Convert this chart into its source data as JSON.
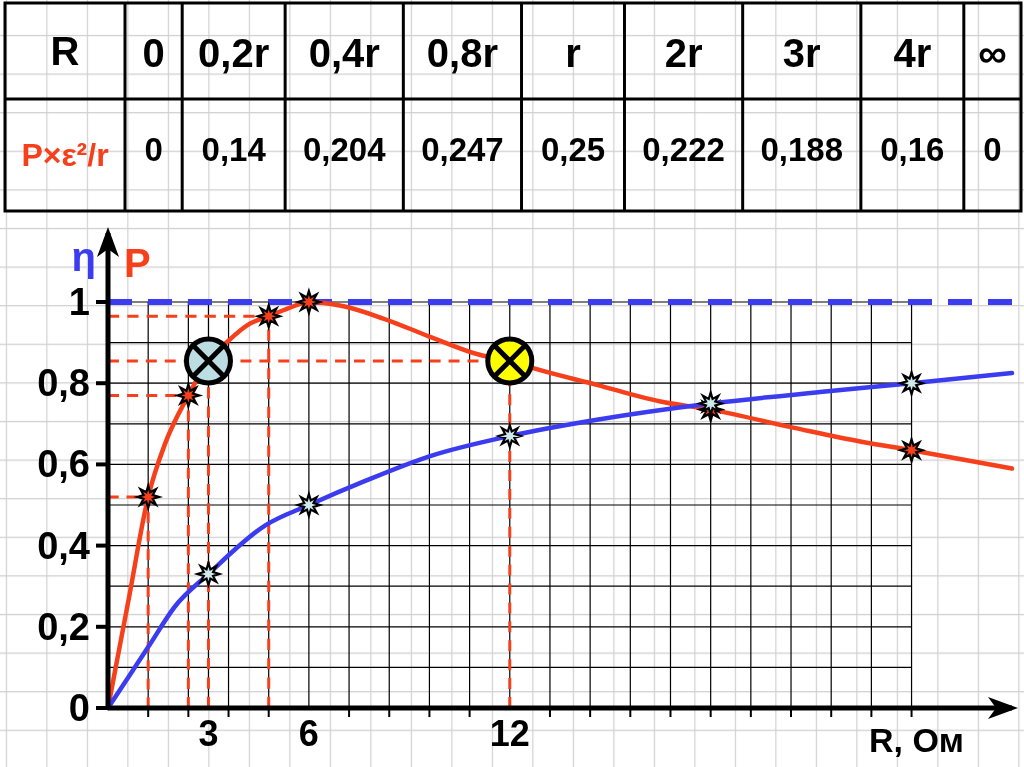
{
  "chart_data": [
    {
      "type": "other",
      "xlabel": "R",
      "ylabel": "P×ε²/r",
      "categories": [
        "0",
        "0,2r",
        "0,4r",
        "0,8r",
        "r",
        "2r",
        "3r",
        "4r",
        "∞"
      ],
      "value_labels": [
        "0",
        "0,14",
        "0,204",
        "0,247",
        "0,25",
        "0,222",
        "0,188",
        "0,16",
        "0"
      ]
    },
    {
      "type": "line",
      "xlabel": "R, Ом",
      "xlim": [
        0,
        27
      ],
      "ylim": [
        0,
        1.17
      ],
      "xticks": [
        {
          "value": 1.2,
          "label": null
        },
        {
          "value": 2.4,
          "label": null
        },
        3,
        {
          "value": 3.6,
          "label": null
        },
        {
          "value": 4.8,
          "label": null
        },
        6,
        {
          "value": 7.2,
          "label": null
        },
        {
          "value": 8.4,
          "label": null
        },
        {
          "value": 9.6,
          "label": null
        },
        {
          "value": 10.8,
          "label": null
        },
        12,
        {
          "value": 13.2,
          "label": null
        },
        {
          "value": 14.4,
          "label": null
        },
        {
          "value": 15.6,
          "label": null
        },
        {
          "value": 16.8,
          "label": null
        },
        {
          "value": 18,
          "label": null
        },
        {
          "value": 19.2,
          "label": null
        },
        {
          "value": 20.4,
          "label": null
        },
        {
          "value": 21.6,
          "label": null
        },
        {
          "value": 22.8,
          "label": null
        },
        {
          "value": 24,
          "label": null
        }
      ],
      "yticks": [
        0,
        {
          "value": 0.1,
          "label": null
        },
        {
          "value": 0.2,
          "label": "0,2"
        },
        {
          "value": 0.3,
          "label": null
        },
        {
          "value": 0.4,
          "label": "0,4"
        },
        {
          "value": 0.5,
          "label": null
        },
        {
          "value": 0.6,
          "label": "0,6"
        },
        {
          "value": 0.7,
          "label": null
        },
        {
          "value": 0.8,
          "label": "0,8"
        },
        {
          "value": 0.9,
          "label": null
        },
        1
      ],
      "grid": true,
      "ref_lines": [
        {
          "axis": "y",
          "value": 1,
          "color": "#3b3bf0",
          "line_style": "dashed"
        }
      ],
      "series": [
        {
          "type": "line",
          "color": "#f5401b",
          "line_style": "dashed",
          "x": [
            1.2,
            1.2,
            0
          ],
          "values": [
            0,
            0.52,
            0.52
          ]
        },
        {
          "type": "line",
          "color": "#f5401b",
          "line_style": "dashed",
          "x": [
            2.4,
            2.4,
            0
          ],
          "values": [
            0,
            0.77,
            0.77
          ]
        },
        {
          "type": "line",
          "color": "#f5401b",
          "line_style": "dashed",
          "x": [
            4.8,
            4.8,
            0
          ],
          "values": [
            0,
            0.965,
            0.965
          ]
        },
        {
          "type": "line",
          "color": "#f5401b",
          "line_style": "dashed",
          "x": [
            3,
            3
          ],
          "values": [
            0,
            0.79
          ]
        },
        {
          "type": "line",
          "color": "#f5401b",
          "line_style": "dashed",
          "x": [
            0,
            12,
            12
          ],
          "values": [
            0.855,
            0.855,
            0
          ]
        },
        {
          "name": "P",
          "type": "line",
          "color": "#f5401b",
          "x": [
            0,
            0.6,
            1.2,
            1.7,
            2.4,
            3,
            3.6,
            4.2,
            4.8,
            5.4,
            6,
            7,
            8.2,
            9.6,
            11.1,
            12,
            12.7,
            14.6,
            16.5,
            18,
            20.5,
            22.5,
            24,
            27
          ],
          "values": [
            0,
            0.26,
            0.52,
            0.65,
            0.77,
            0.855,
            0.905,
            0.945,
            0.965,
            0.985,
            1,
            0.99,
            0.96,
            0.915,
            0.87,
            0.855,
            0.837,
            0.796,
            0.755,
            0.735,
            0.69,
            0.656,
            0.635,
            0.59
          ]
        },
        {
          "type": "scatter",
          "marker": "star",
          "color": "#f5401b",
          "x": [
            1.2,
            2.4,
            4.8,
            6,
            18,
            24
          ],
          "values": [
            0.52,
            0.77,
            0.965,
            1,
            0.735,
            0.635
          ]
        },
        {
          "name": "η",
          "type": "line",
          "color": "#3b3bf0",
          "x": [
            0,
            1.2,
            2,
            3,
            4.7,
            6,
            7.7,
            9.6,
            12,
            14.6,
            18,
            21.5,
            24,
            27
          ],
          "values": [
            0,
            0.15,
            0.25,
            0.33,
            0.45,
            0.5,
            0.56,
            0.62,
            0.67,
            0.71,
            0.75,
            0.78,
            0.8,
            0.825
          ]
        },
        {
          "type": "scatter",
          "marker": "star",
          "color": "#cfeaec",
          "x": [
            3,
            6,
            12,
            18,
            24
          ],
          "values": [
            0.33,
            0.5,
            0.67,
            0.75,
            0.8
          ]
        },
        {
          "type": "scatter",
          "marker": "circle",
          "colors": [
            "#bcdde2",
            "#ffff00"
          ],
          "x": [
            3,
            12
          ],
          "values": [
            0.855,
            0.855
          ]
        }
      ]
    }
  ]
}
